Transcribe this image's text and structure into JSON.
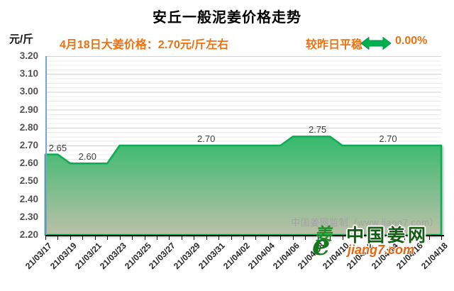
{
  "title": "安丘一般泥姜价格走势",
  "unit_label": "元/斤",
  "subtitle": {
    "price_text": "4月18日大姜价格：2.70元/斤左右",
    "trend_text": "较昨日平稳",
    "trend_value": "0.00%"
  },
  "watermark": {
    "inner_text": "中国姜网监制（www.jiang7.com）",
    "logo_glyph_char": "姜",
    "logo_glyph_e": "e",
    "logo_name": "中国姜网",
    "logo_site": "jiang7.com"
  },
  "colors": {
    "accent_orange": "#ED7211",
    "arrow_green": "#00B14D",
    "area_line_green": "#0CAC55",
    "area_fill_top": "#2FBA6B",
    "area_fill_bottom": "#BCC0A8",
    "y_axis_line_blue": "#74A5D6",
    "logo_dark_green": "#145C14",
    "logo_orange": "#E8650D"
  },
  "chart_data": {
    "type": "area",
    "title": "安丘一般泥姜价格走势",
    "ylabel": "元/斤",
    "ylim": [
      2.2,
      3.2
    ],
    "y_tick_labels": [
      "3.20",
      "3.10",
      "3.00",
      "2.90",
      "2.80",
      "2.70",
      "2.60",
      "2.50",
      "2.40",
      "2.30",
      "2.20"
    ],
    "grid": true,
    "legend": false,
    "x_label_every": 2,
    "x": [
      "21/03/17",
      "21/03/18",
      "21/03/19",
      "21/03/20",
      "21/03/21",
      "21/03/22",
      "21/03/23",
      "21/03/24",
      "21/03/25",
      "21/03/26",
      "21/03/27",
      "21/03/28",
      "21/03/29",
      "21/03/30",
      "21/03/31",
      "21/04/01",
      "21/04/02",
      "21/04/03",
      "21/04/04",
      "21/04/05",
      "21/04/06",
      "21/04/07",
      "21/04/08",
      "21/04/09",
      "21/04/10",
      "21/04/11",
      "21/04/12",
      "21/04/13",
      "21/04/14",
      "21/04/15",
      "21/04/16",
      "21/04/17",
      "21/04/18"
    ],
    "values": [
      2.65,
      2.65,
      2.6,
      2.6,
      2.6,
      2.6,
      2.7,
      2.7,
      2.7,
      2.7,
      2.7,
      2.7,
      2.7,
      2.7,
      2.7,
      2.7,
      2.7,
      2.7,
      2.7,
      2.7,
      2.75,
      2.75,
      2.75,
      2.75,
      2.7,
      2.7,
      2.7,
      2.7,
      2.7,
      2.7,
      2.7,
      2.7,
      2.7
    ],
    "data_labels": [
      {
        "day": 1,
        "value": "2.65"
      },
      {
        "day": 3.4,
        "value": "2.60"
      },
      {
        "day": 13,
        "value": "2.70"
      },
      {
        "day": 22,
        "value": "2.75"
      },
      {
        "day": 27.7,
        "value": "2.70"
      }
    ]
  }
}
